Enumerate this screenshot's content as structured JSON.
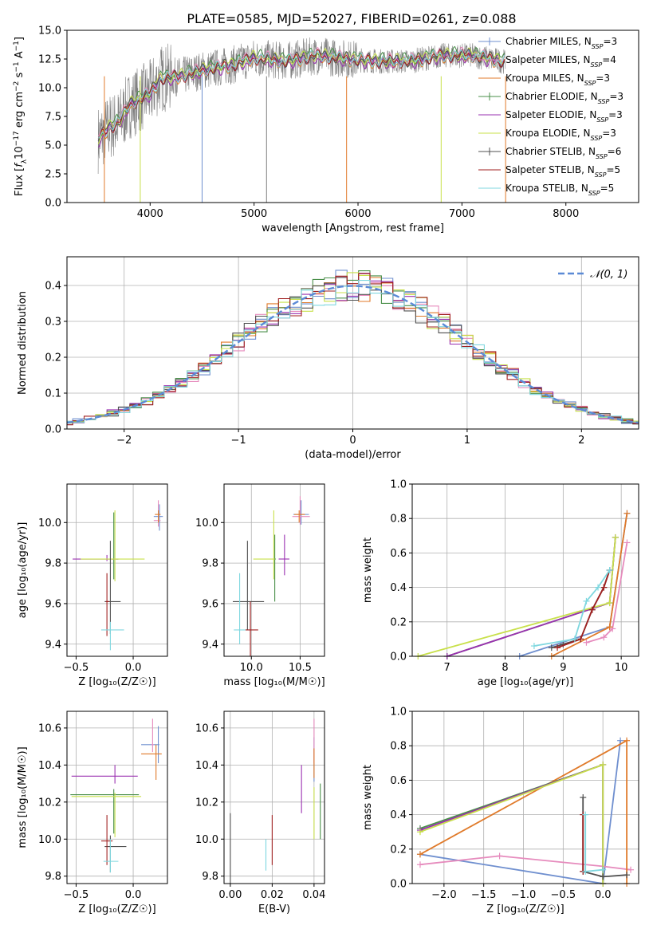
{
  "title": "PLATE=0585, MJD=52027, FIBERID=0261, z=0.088",
  "colors": {
    "Chabrier MILES": "#6f8fcf",
    "Salpeter MILES": "#e68bbd",
    "Kroupa MILES": "#e07a2a",
    "Chabrier ELODIE": "#4a8f4a",
    "Salpeter ELODIE": "#9a30b0",
    "Kroupa ELODIE": "#c8e04a",
    "Chabrier STELIB": "#505050",
    "Salpeter STELIB": "#a02020",
    "Kroupa STELIB": "#7fd7df"
  },
  "chart_data": [
    {
      "id": "spectrum",
      "type": "line",
      "xlabel": "wavelength [Angstrom, rest frame]",
      "ylabel_parts": [
        "Flux [",
        "f",
        "λ",
        "10",
        "−17",
        " erg cm",
        "−2",
        " s",
        "−1",
        " A",
        "−1",
        "]"
      ],
      "xlim": [
        3200,
        8700
      ],
      "ylim": [
        0,
        15
      ],
      "xticks": [
        4000,
        5000,
        6000,
        7000,
        8000
      ],
      "yticks": [
        0.0,
        2.5,
        5.0,
        7.5,
        10.0,
        12.5,
        15.0
      ],
      "legend": [
        {
          "label": "Chabrier MILES",
          "sub": "SSP",
          "n": "=3"
        },
        {
          "label": "Salpeter MILES",
          "sub": "SSP",
          "n": "=4"
        },
        {
          "label": "Kroupa MILES",
          "sub": "SSP",
          "n": "=3"
        },
        {
          "label": "Chabrier ELODIE",
          "sub": "SSP",
          "n": "=3"
        },
        {
          "label": "Salpeter ELODIE",
          "sub": "SSP",
          "n": "=3"
        },
        {
          "label": "Kroupa ELODIE",
          "sub": "SSP",
          "n": "=3"
        },
        {
          "label": "Chabrier STELIB",
          "sub": "SSP",
          "n": "=6"
        },
        {
          "label": "Salpeter STELIB",
          "sub": "SSP",
          "n": "=5"
        },
        {
          "label": "Kroupa STELIB",
          "sub": "SSP",
          "n": "=5"
        }
      ],
      "data_trend": {
        "x": [
          3500,
          3600,
          3700,
          3800,
          3900,
          4000,
          4100,
          4300,
          4500,
          4800,
          5000,
          5300,
          5600,
          5900,
          6200,
          6500,
          6800,
          7100,
          7400
        ],
        "y": [
          5.5,
          6.5,
          7.0,
          8.5,
          9.0,
          9.5,
          10.8,
          11.0,
          11.5,
          12.0,
          12.6,
          12.3,
          12.8,
          12.5,
          12.3,
          12.3,
          12.8,
          12.8,
          12.3
        ]
      }
    },
    {
      "id": "residuals",
      "type": "line",
      "xlabel": "(data-model)/error",
      "ylabel": "Normed distribution",
      "xlim": [
        -2.5,
        2.5
      ],
      "ylim": [
        0,
        0.48
      ],
      "xticks": [
        -2,
        -1,
        0,
        1,
        2
      ],
      "yticks": [
        0.0,
        0.1,
        0.2,
        0.3,
        0.4
      ],
      "legend": "𝒩(0, 1)",
      "legend_position": "top-right",
      "grid": true
    },
    {
      "id": "age-vs-Z",
      "type": "scatter",
      "xlabel": "Z [log₁₀(Z/Z☉)]",
      "ylabel": "age  [log₁₀(age/yr)]",
      "xlim": [
        -0.58,
        0.3
      ],
      "ylim": [
        9.34,
        10.19
      ],
      "xticks": [
        -0.5,
        0.0
      ],
      "yticks": [
        9.4,
        9.6,
        9.8,
        10.0
      ],
      "grid": true,
      "points": [
        {
          "series": "Chabrier MILES",
          "x": 0.23,
          "y": 10.03,
          "xerr": [
            0.05,
            0.03
          ],
          "yerr": [
            0.07,
            0.06
          ]
        },
        {
          "series": "Salpeter MILES",
          "x": 0.22,
          "y": 10.01,
          "xerr": [
            0.04,
            0.02
          ],
          "yerr": [
            0.03,
            0.1
          ]
        },
        {
          "series": "Kroupa MILES",
          "x": 0.22,
          "y": 10.04,
          "xerr": [
            0.03,
            0.02
          ],
          "yerr": [
            0.04,
            0.02
          ]
        },
        {
          "series": "Chabrier ELODIE",
          "x": -0.17,
          "y": 9.82,
          "xerr": [
            0.01,
            0.04
          ],
          "yerr": [
            0.1,
            0.23
          ]
        },
        {
          "series": "Salpeter ELODIE",
          "x": -0.23,
          "y": 9.82,
          "xerr": [
            0.3,
            0.1
          ],
          "yerr": [
            0.01,
            0.02
          ]
        },
        {
          "series": "Kroupa ELODIE",
          "x": -0.16,
          "y": 9.82,
          "xerr": [
            0.3,
            0.26
          ],
          "yerr": [
            0.11,
            0.24
          ]
        },
        {
          "series": "Chabrier STELIB",
          "x": -0.2,
          "y": 9.61,
          "xerr": [
            0.05,
            0.09
          ],
          "yerr": [
            0.16,
            0.3
          ]
        },
        {
          "series": "Salpeter STELIB",
          "x": -0.23,
          "y": 9.61,
          "xerr": [
            0.01,
            0.02
          ],
          "yerr": [
            0.17,
            0.14
          ]
        },
        {
          "series": "Kroupa STELIB",
          "x": -0.2,
          "y": 9.47,
          "xerr": [
            0.08,
            0.12
          ],
          "yerr": [
            0.1,
            0.04
          ]
        }
      ]
    },
    {
      "id": "age-vs-mass",
      "type": "scatter",
      "xlabel": "mass [log₁₀(M/M☉)]",
      "ylabel": "",
      "xlim": [
        9.72,
        10.75
      ],
      "ylim": [
        9.34,
        10.19
      ],
      "xticks": [
        10.0,
        10.5
      ],
      "yticks": [
        9.4,
        9.6,
        9.8,
        10.0
      ],
      "grid": true,
      "points": [
        {
          "series": "Chabrier MILES",
          "x": 10.51,
          "y": 10.04,
          "xerr": [
            0.08,
            0.08
          ],
          "yerr": [
            0.05,
            0.07
          ]
        },
        {
          "series": "Salpeter MILES",
          "x": 10.5,
          "y": 10.03,
          "xerr": [
            0.08,
            0.1
          ],
          "yerr": [
            0.04,
            0.1
          ]
        },
        {
          "series": "Kroupa MILES",
          "x": 10.49,
          "y": 10.04,
          "xerr": [
            0.05,
            0.06
          ],
          "yerr": [
            0.04,
            0.02
          ]
        },
        {
          "series": "Chabrier ELODIE",
          "x": 10.24,
          "y": 9.82,
          "xerr": [
            0.01,
            0.01
          ],
          "yerr": [
            0.21,
            0.12
          ]
        },
        {
          "series": "Salpeter ELODIE",
          "x": 10.34,
          "y": 9.82,
          "xerr": [
            0.06,
            0.05
          ],
          "yerr": [
            0.08,
            0.12
          ]
        },
        {
          "series": "Kroupa ELODIE",
          "x": 10.23,
          "y": 9.82,
          "xerr": [
            0.21,
            0.01
          ],
          "yerr": [
            0.1,
            0.24
          ]
        },
        {
          "series": "Chabrier STELIB",
          "x": 9.96,
          "y": 9.61,
          "xerr": [
            0.15,
            0.17
          ],
          "yerr": [
            0.14,
            0.3
          ]
        },
        {
          "series": "Salpeter STELIB",
          "x": 9.99,
          "y": 9.47,
          "xerr": [
            0.05,
            0.08
          ],
          "yerr": [
            0.13,
            0.14
          ]
        },
        {
          "series": "Kroupa STELIB",
          "x": 9.88,
          "y": 9.47,
          "xerr": [
            0.06,
            0.06
          ],
          "yerr": [
            0.07,
            0.28
          ]
        }
      ]
    },
    {
      "id": "weight-vs-age",
      "type": "line",
      "xlabel": "age  [log₁₀(age/yr)]",
      "ylabel": "mass weight",
      "xlim": [
        6.4,
        10.3
      ],
      "ylim": [
        0,
        1
      ],
      "xticks": [
        7,
        8,
        9,
        10
      ],
      "yticks": [
        0.0,
        0.2,
        0.4,
        0.6,
        0.8,
        1.0
      ],
      "grid": true,
      "series": [
        {
          "name": "Chabrier MILES",
          "x": [
            8.25,
            9.8,
            10.1
          ],
          "y": [
            0.0,
            0.17,
            0.83
          ]
        },
        {
          "name": "Salpeter MILES",
          "x": [
            9.4,
            9.7,
            9.85,
            10.1
          ],
          "y": [
            0.08,
            0.11,
            0.16,
            0.66
          ]
        },
        {
          "name": "Kroupa MILES",
          "x": [
            8.8,
            9.8,
            10.1
          ],
          "y": [
            0.0,
            0.17,
            0.83
          ]
        },
        {
          "name": "Chabrier ELODIE",
          "x": [
            7.0,
            9.8,
            9.9
          ],
          "y": [
            0.0,
            0.31,
            0.69
          ]
        },
        {
          "name": "Salpeter ELODIE",
          "x": [
            7.0,
            9.8,
            9.9
          ],
          "y": [
            0.0,
            0.31,
            0.69
          ]
        },
        {
          "name": "Kroupa ELODIE",
          "x": [
            6.5,
            9.8,
            9.9
          ],
          "y": [
            0.0,
            0.31,
            0.69
          ]
        },
        {
          "name": "Chabrier STELIB",
          "x": [
            8.8,
            9.0,
            9.3,
            9.5,
            9.7,
            9.8
          ],
          "y": [
            0.05,
            0.07,
            0.1,
            0.27,
            0.4,
            0.5
          ]
        },
        {
          "name": "Salpeter STELIB",
          "x": [
            8.9,
            9.3,
            9.5,
            9.7,
            9.8
          ],
          "y": [
            0.05,
            0.1,
            0.27,
            0.4,
            0.5
          ]
        },
        {
          "name": "Kroupa STELIB",
          "x": [
            8.5,
            9.2,
            9.4,
            9.6,
            9.8
          ],
          "y": [
            0.06,
            0.1,
            0.32,
            0.4,
            0.5
          ]
        }
      ]
    },
    {
      "id": "mass-vs-Z",
      "type": "scatter",
      "xlabel": "Z [log₁₀(Z/Z☉)]",
      "ylabel": "mass [log₁₀(M/M☉)]",
      "xlim": [
        -0.58,
        0.3
      ],
      "ylim": [
        9.76,
        10.69
      ],
      "xticks": [
        -0.5,
        0.0
      ],
      "yticks": [
        9.8,
        10.0,
        10.2,
        10.4,
        10.6
      ],
      "grid": true,
      "points": [
        {
          "series": "Chabrier MILES",
          "x": 0.22,
          "y": 10.51,
          "xerr": [
            0.15,
            0.01
          ],
          "yerr": [
            0.1,
            0.1
          ]
        },
        {
          "series": "Salpeter MILES",
          "x": 0.17,
          "y": 10.51,
          "xerr": [
            0.01,
            0.01
          ],
          "yerr": [
            0.04,
            0.14
          ]
        },
        {
          "series": "Kroupa MILES",
          "x": 0.2,
          "y": 10.46,
          "xerr": [
            0.13,
            0.05
          ],
          "yerr": [
            0.14,
            0.05
          ]
        },
        {
          "series": "Chabrier ELODIE",
          "x": -0.17,
          "y": 10.24,
          "xerr": [
            0.38,
            0.22
          ],
          "yerr": [
            0.21,
            0.03
          ]
        },
        {
          "series": "Salpeter ELODIE",
          "x": -0.16,
          "y": 10.34,
          "xerr": [
            0.38,
            0.2
          ],
          "yerr": [
            0.04,
            0.06
          ]
        },
        {
          "series": "Kroupa ELODIE",
          "x": -0.16,
          "y": 10.23,
          "xerr": [
            0.38,
            0.23
          ],
          "yerr": [
            0.22,
            0.02
          ]
        },
        {
          "series": "Chabrier STELIB",
          "x": -0.2,
          "y": 9.96,
          "xerr": [
            0.05,
            0.14
          ],
          "yerr": [
            0.14,
            0.06
          ]
        },
        {
          "series": "Salpeter STELIB",
          "x": -0.23,
          "y": 9.99,
          "xerr": [
            0.05,
            0.05
          ],
          "yerr": [
            0.13,
            0.14
          ]
        },
        {
          "series": "Kroupa STELIB",
          "x": -0.2,
          "y": 9.88,
          "xerr": [
            0.06,
            0.07
          ],
          "yerr": [
            0.06,
            0.12
          ]
        }
      ]
    },
    {
      "id": "mass-vs-ebv",
      "type": "scatter",
      "xlabel": "E(B-V)",
      "ylabel": "",
      "xlim": [
        -0.003,
        0.045
      ],
      "ylim": [
        9.76,
        10.69
      ],
      "xticks": [
        0.0,
        0.02,
        0.04
      ],
      "yticks": [
        9.8,
        10.0,
        10.2,
        10.4,
        10.6
      ],
      "grid": true,
      "points": [
        {
          "series": "Chabrier MILES",
          "x": 0.04,
          "y": 10.51,
          "yerr": [
            0.2,
            0.04
          ]
        },
        {
          "series": "Salpeter MILES",
          "x": 0.04,
          "y": 10.51,
          "yerr": [
            0.1,
            0.14
          ]
        },
        {
          "series": "Kroupa MILES",
          "x": 0.04,
          "y": 10.46,
          "yerr": [
            0.13,
            0.03
          ]
        },
        {
          "series": "Chabrier ELODIE",
          "x": 0.043,
          "y": 10.15,
          "yerr": [
            0.15,
            0.15
          ]
        },
        {
          "series": "Salpeter ELODIE",
          "x": 0.034,
          "y": 10.27,
          "yerr": [
            0.13,
            0.13
          ]
        },
        {
          "series": "Kroupa ELODIE",
          "x": 0.04,
          "y": 10.23,
          "yerr": [
            0.23,
            0.05
          ]
        },
        {
          "series": "Chabrier STELIB",
          "x": 0.0,
          "y": 9.96,
          "yerr": [
            0.21,
            0.18
          ]
        },
        {
          "series": "Salpeter STELIB",
          "x": 0.02,
          "y": 9.99,
          "yerr": [
            0.13,
            0.14
          ]
        },
        {
          "series": "Kroupa STELIB",
          "x": 0.017,
          "y": 9.88,
          "yerr": [
            0.05,
            0.12
          ]
        }
      ]
    },
    {
      "id": "weight-vs-Z",
      "type": "line",
      "xlabel": "Z [log₁₀(Z/Z☉)]",
      "ylabel": "mass weight",
      "xlim": [
        -2.4,
        0.45
      ],
      "ylim": [
        0,
        1
      ],
      "xticks": [
        -2.0,
        -1.5,
        -1.0,
        -0.5,
        0.0
      ],
      "yticks": [
        0.0,
        0.2,
        0.4,
        0.6,
        0.8,
        1.0
      ],
      "grid": true,
      "series": [
        {
          "name": "Chabrier MILES",
          "x": [
            -2.3,
            0.0,
            0.22
          ],
          "y": [
            0.17,
            0.0,
            0.83
          ]
        },
        {
          "name": "Salpeter MILES",
          "x": [
            -2.3,
            -1.3,
            0.0,
            0.35
          ],
          "y": [
            0.11,
            0.16,
            0.1,
            0.08
          ]
        },
        {
          "name": "Kroupa MILES",
          "x": [
            -2.3,
            0.3,
            0.3
          ],
          "y": [
            0.17,
            0.83,
            0.0
          ]
        },
        {
          "name": "Chabrier ELODIE",
          "x": [
            -2.3,
            0.0,
            0.0
          ],
          "y": [
            0.32,
            0.69,
            0.0
          ]
        },
        {
          "name": "Salpeter ELODIE",
          "x": [
            -2.3,
            0.0,
            0.0
          ],
          "y": [
            0.31,
            0.69,
            0.0
          ]
        },
        {
          "name": "Kroupa ELODIE",
          "x": [
            -2.3,
            0.0,
            0.0
          ],
          "y": [
            0.3,
            0.69,
            0.0
          ]
        },
        {
          "name": "Chabrier STELIB",
          "x": [
            -0.25,
            -0.25,
            0.0,
            0.3
          ],
          "y": [
            0.5,
            0.07,
            0.04,
            0.05
          ]
        },
        {
          "name": "Salpeter STELIB",
          "x": [
            -0.25,
            -0.25
          ],
          "y": [
            0.4,
            0.07
          ]
        },
        {
          "name": "Kroupa STELIB",
          "x": [
            -0.22,
            -0.22,
            0.0
          ],
          "y": [
            0.4,
            0.07,
            0.08
          ]
        }
      ]
    }
  ]
}
